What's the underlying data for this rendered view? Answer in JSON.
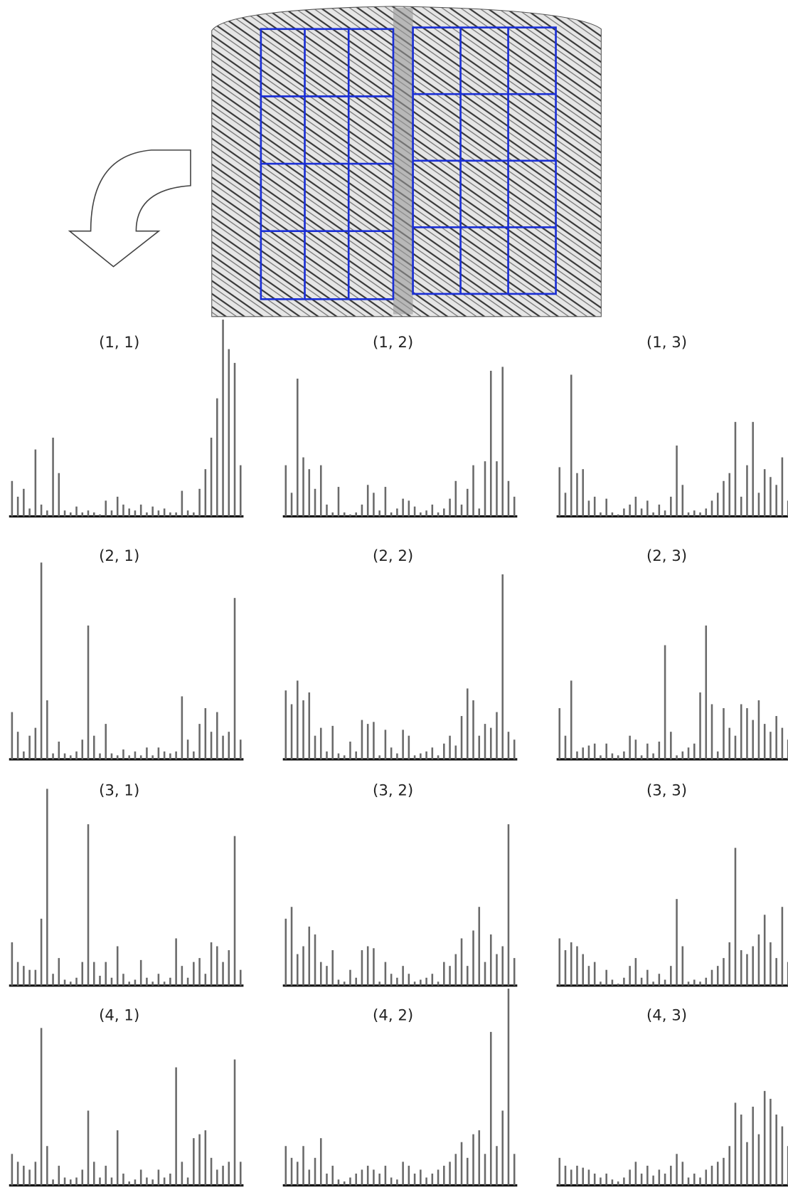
{
  "chart_data": [
    {
      "type": "bar",
      "title": "(1, 1)",
      "values": [
        18,
        10,
        14,
        4,
        34,
        6,
        3,
        40,
        22,
        3,
        2,
        5,
        2,
        3,
        2,
        1,
        8,
        3,
        10,
        6,
        4,
        3,
        6,
        2,
        5,
        3,
        4,
        2,
        2,
        13,
        3,
        2,
        14,
        24,
        40,
        60,
        100,
        85,
        78,
        26
      ]
    },
    {
      "type": "bar",
      "title": "(1, 2)",
      "values": [
        26,
        12,
        70,
        30,
        24,
        14,
        26,
        6,
        2,
        15,
        2,
        1,
        2,
        6,
        16,
        12,
        3,
        15,
        2,
        4,
        9,
        8,
        5,
        2,
        3,
        6,
        2,
        4,
        9,
        18,
        6,
        14,
        26,
        4,
        28,
        74,
        28,
        76,
        18,
        10
      ]
    },
    {
      "type": "bar",
      "title": "(1, 3)",
      "values": [
        25,
        12,
        72,
        22,
        24,
        8,
        10,
        2,
        9,
        2,
        1,
        4,
        6,
        10,
        4,
        8,
        2,
        6,
        3,
        10,
        36,
        16,
        2,
        3,
        2,
        4,
        8,
        12,
        18,
        22,
        48,
        10,
        26,
        48,
        12,
        24,
        20,
        16,
        30,
        8
      ]
    },
    {
      "type": "bar",
      "title": "(2, 1)",
      "values": [
        24,
        14,
        4,
        12,
        16,
        100,
        30,
        3,
        9,
        3,
        2,
        4,
        10,
        68,
        12,
        3,
        18,
        3,
        2,
        5,
        2,
        4,
        2,
        6,
        2,
        6,
        4,
        3,
        4,
        32,
        10,
        4,
        18,
        26,
        14,
        24,
        12,
        14,
        82,
        10
      ]
    },
    {
      "type": "bar",
      "title": "(2, 2)",
      "values": [
        35,
        28,
        40,
        30,
        34,
        12,
        16,
        4,
        17,
        3,
        2,
        9,
        4,
        20,
        18,
        19,
        2,
        15,
        6,
        3,
        15,
        12,
        2,
        3,
        4,
        6,
        2,
        8,
        12,
        7,
        22,
        36,
        30,
        12,
        18,
        16,
        24,
        94,
        14,
        10
      ]
    },
    {
      "type": "bar",
      "title": "(2, 3)",
      "values": [
        26,
        12,
        40,
        4,
        6,
        7,
        8,
        2,
        8,
        3,
        2,
        4,
        12,
        10,
        2,
        8,
        3,
        9,
        58,
        14,
        2,
        4,
        6,
        8,
        34,
        68,
        28,
        4,
        26,
        16,
        12,
        28,
        26,
        20,
        30,
        18,
        14,
        22,
        16,
        10
      ]
    },
    {
      "type": "bar",
      "title": "(3, 1)",
      "values": [
        22,
        12,
        10,
        8,
        8,
        34,
        100,
        6,
        14,
        3,
        2,
        4,
        12,
        82,
        12,
        5,
        12,
        4,
        20,
        6,
        2,
        3,
        13,
        4,
        2,
        6,
        2,
        4,
        24,
        10,
        4,
        12,
        14,
        6,
        22,
        20,
        12,
        18,
        76,
        8
      ]
    },
    {
      "type": "bar",
      "title": "(3, 2)",
      "values": [
        34,
        40,
        16,
        20,
        30,
        26,
        12,
        10,
        18,
        3,
        2,
        8,
        4,
        18,
        20,
        19,
        2,
        12,
        6,
        4,
        10,
        6,
        2,
        3,
        4,
        6,
        2,
        12,
        10,
        16,
        24,
        10,
        28,
        40,
        12,
        26,
        16,
        20,
        82,
        14
      ]
    },
    {
      "type": "bar",
      "title": "(3, 3)",
      "values": [
        24,
        18,
        22,
        20,
        16,
        10,
        12,
        2,
        8,
        3,
        1,
        4,
        10,
        14,
        4,
        8,
        2,
        6,
        3,
        10,
        44,
        20,
        2,
        3,
        2,
        4,
        8,
        10,
        14,
        22,
        70,
        18,
        16,
        20,
        26,
        36,
        22,
        14,
        40,
        12
      ]
    },
    {
      "type": "bar",
      "title": "(4, 1)",
      "values": [
        16,
        12,
        10,
        8,
        12,
        80,
        20,
        3,
        10,
        4,
        3,
        4,
        8,
        38,
        12,
        4,
        10,
        4,
        28,
        6,
        2,
        3,
        8,
        4,
        3,
        8,
        4,
        6,
        60,
        12,
        4,
        24,
        26,
        28,
        14,
        8,
        10,
        12,
        64,
        12
      ]
    },
    {
      "type": "bar",
      "title": "(4, 2)",
      "values": [
        20,
        14,
        12,
        20,
        8,
        14,
        24,
        6,
        10,
        3,
        2,
        4,
        6,
        8,
        10,
        8,
        6,
        10,
        4,
        3,
        12,
        10,
        6,
        8,
        4,
        6,
        8,
        10,
        12,
        16,
        22,
        14,
        26,
        28,
        16,
        78,
        20,
        38,
        100,
        16
      ]
    },
    {
      "type": "bar",
      "title": "(4, 3)",
      "values": [
        14,
        10,
        8,
        10,
        9,
        8,
        6,
        4,
        6,
        3,
        2,
        4,
        8,
        12,
        6,
        10,
        5,
        8,
        6,
        10,
        16,
        12,
        4,
        6,
        4,
        8,
        10,
        12,
        14,
        20,
        42,
        36,
        22,
        40,
        26,
        48,
        44,
        36,
        30,
        20
      ]
    }
  ]
}
